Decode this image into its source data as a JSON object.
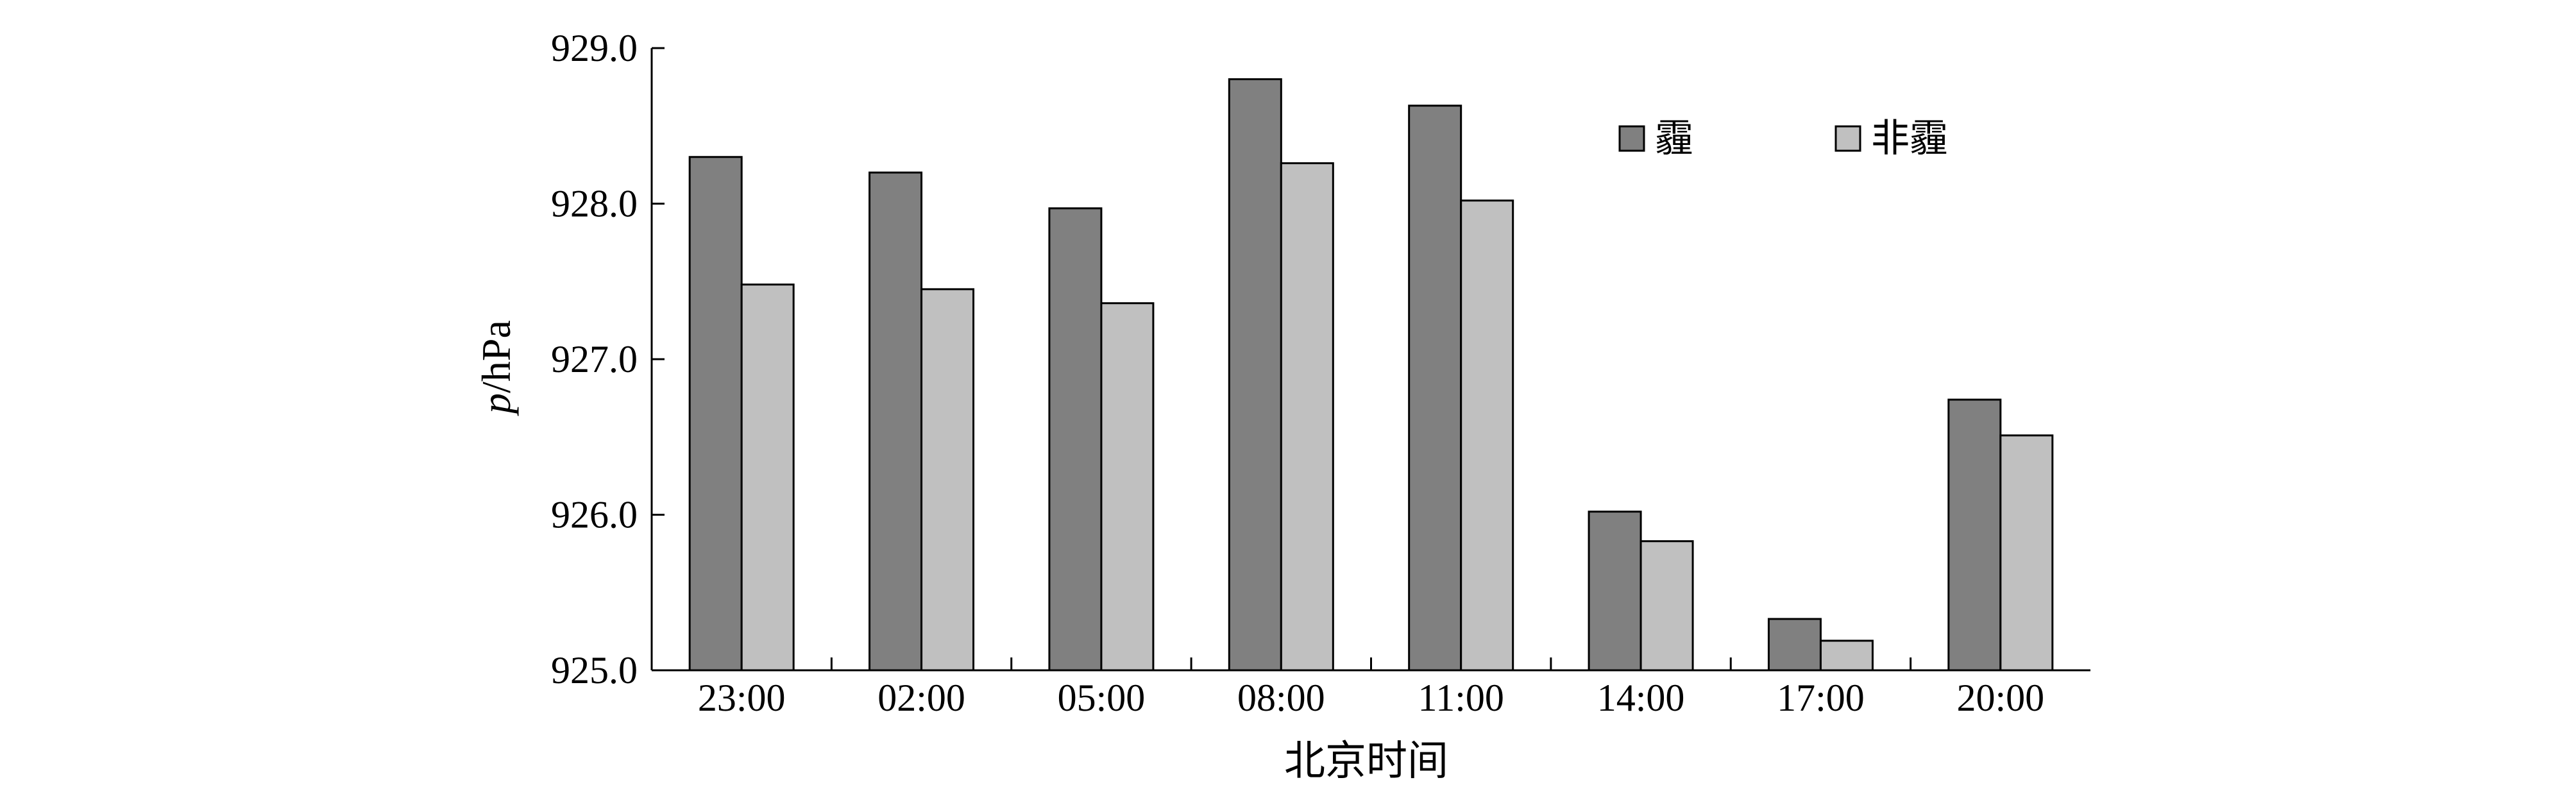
{
  "chart_data": {
    "type": "bar",
    "title": "",
    "xlabel": "北京时间",
    "ylabel_italic": "p",
    "ylabel_unit": "/hPa",
    "categories": [
      "23:00",
      "02:00",
      "05:00",
      "08:00",
      "11:00",
      "14:00",
      "17:00",
      "20:00"
    ],
    "series": [
      {
        "name": "霾",
        "color": "#808080",
        "values": [
          928.3,
          928.2,
          927.97,
          928.8,
          928.63,
          926.02,
          925.33,
          926.74
        ]
      },
      {
        "name": "非霾",
        "color": "#c0c0c0",
        "values": [
          927.48,
          927.45,
          927.36,
          928.26,
          928.02,
          925.83,
          925.19,
          926.51
        ]
      }
    ],
    "ylim": [
      925.0,
      929.0
    ],
    "yticks": [
      "925.0",
      "926.0",
      "927.0",
      "928.0",
      "929.0"
    ],
    "grid": false,
    "legend_position": "top-right"
  }
}
